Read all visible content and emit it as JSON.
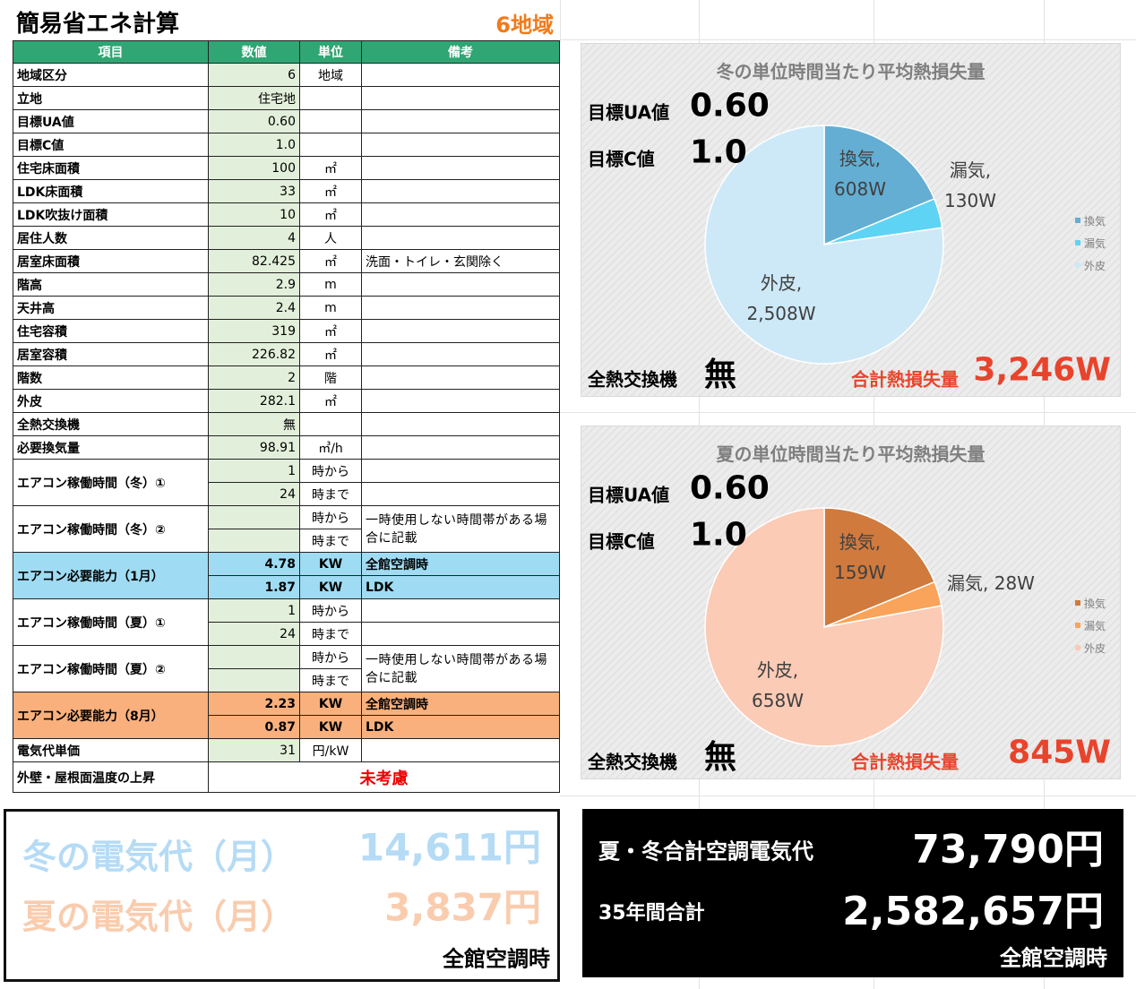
{
  "header": {
    "title": "簡易省エネ計算",
    "region": "6地域"
  },
  "table": {
    "columns": [
      "項目",
      "数値",
      "単位",
      "備考"
    ],
    "rows": [
      {
        "item": "地域区分",
        "value": "6",
        "unit": "地域"
      },
      {
        "item": "立地",
        "value": "住宅地"
      },
      {
        "item": "目標UA値",
        "value": "0.60"
      },
      {
        "item": "目標C値",
        "value": "1.0"
      },
      {
        "item": "住宅床面積",
        "value": "100",
        "unit": "㎡"
      },
      {
        "item": "LDK床面積",
        "value": "33",
        "unit": "㎡"
      },
      {
        "item": "LDK吹抜け面積",
        "value": "10",
        "unit": "㎡"
      },
      {
        "item": "居住人数",
        "value": "4",
        "unit": "人"
      },
      {
        "item": "居室床面積",
        "value": "82.425",
        "unit": "㎡",
        "note": "洗面・トイレ・玄関除く"
      },
      {
        "item": "階高",
        "value": "2.9",
        "unit": "m"
      },
      {
        "item": "天井高",
        "value": "2.4",
        "unit": "m"
      },
      {
        "item": "住宅容積",
        "value": "319",
        "unit": "㎡"
      },
      {
        "item": "居室容積",
        "value": "226.82",
        "unit": "㎡"
      },
      {
        "item": "階数",
        "value": "2",
        "unit": "階"
      },
      {
        "item": "外皮",
        "value": "282.1",
        "unit": "㎡"
      },
      {
        "item": "全熱交換機",
        "value": "無"
      },
      {
        "item": "必要換気量",
        "value": "98.91",
        "unit": "㎥/h"
      },
      {
        "item": "エアコン稼働時間（冬）①",
        "lines": [
          {
            "value": "1",
            "unit": "時から"
          },
          {
            "value": "24",
            "unit": "時まで"
          }
        ]
      },
      {
        "item": "エアコン稼働時間（冬）②",
        "lines": [
          {
            "unit": "時から"
          },
          {
            "unit": "時まで"
          }
        ],
        "note": "一時使用しない時間帯がある場合に記載"
      },
      {
        "item": "エアコン必要能力（1月）",
        "highlight": "#9fdcf3",
        "lines": [
          {
            "value": "4.78",
            "unit": "KW",
            "note": "全館空調時"
          },
          {
            "value": "1.87",
            "unit": "KW",
            "note": "LDK"
          }
        ]
      },
      {
        "item": "エアコン稼働時間（夏）①",
        "lines": [
          {
            "value": "1",
            "unit": "時から"
          },
          {
            "value": "24",
            "unit": "時まで"
          }
        ]
      },
      {
        "item": "エアコン稼働時間（夏）②",
        "lines": [
          {
            "unit": "時から"
          },
          {
            "unit": "時まで"
          }
        ],
        "note": "一時使用しない時間帯がある場合に記載"
      },
      {
        "item": "エアコン必要能力（8月）",
        "highlight": "#f9b07c",
        "lines": [
          {
            "value": "2.23",
            "unit": "KW",
            "note": "全館空調時"
          },
          {
            "value": "0.87",
            "unit": "KW",
            "note": "LDK"
          }
        ]
      },
      {
        "item": "電気代単価",
        "value": "31",
        "unit": "円/kW"
      },
      {
        "item": "外壁・屋根面温度の上昇",
        "remark": "未考慮"
      }
    ]
  },
  "chart_data": [
    {
      "type": "pie",
      "title": "冬の単位時間当たり平均熱損失量",
      "categories": [
        "換気",
        "漏気",
        "外皮"
      ],
      "values": [
        608,
        130,
        2508
      ],
      "value_labels": [
        "換気, 608W",
        "漏気, 130W",
        "外皮, 2,508W"
      ],
      "colors": [
        "#64aed3",
        "#5fd3f3",
        "#cde9f8"
      ],
      "legend": "right",
      "annotations": [
        {
          "label": "目標UA値",
          "text": "0.60"
        },
        {
          "label": "目標C値",
          "text": "1.0"
        },
        {
          "label": "全熱交換機",
          "text": "無"
        },
        {
          "label": "合計熱損失量",
          "text": "3,246W"
        }
      ]
    },
    {
      "type": "pie",
      "title": "夏の単位時間当たり平均熱損失量",
      "categories": [
        "換気",
        "漏気",
        "外皮"
      ],
      "values": [
        159,
        28,
        658
      ],
      "value_labels": [
        "換気, 159W",
        "漏気, 28W",
        "外皮, 658W"
      ],
      "colors": [
        "#d07a3e",
        "#f9a45a",
        "#fbcbb6"
      ],
      "legend": "right",
      "annotations": [
        {
          "label": "目標UA値",
          "text": "0.60"
        },
        {
          "label": "目標C値",
          "text": "1.0"
        },
        {
          "label": "全熱交換機",
          "text": "無"
        },
        {
          "label": "合計熱損失量",
          "text": "845W"
        }
      ]
    }
  ],
  "summary": {
    "monthly": {
      "rows": [
        {
          "label": "冬の電気代（月）",
          "amount": "14,611円"
        },
        {
          "label": "夏の電気代（月）",
          "amount": "3,837円"
        }
      ],
      "footer": "全館空調時"
    },
    "total": {
      "rows": [
        {
          "label": "夏・冬合計空調電気代",
          "amount": "73,790円"
        },
        {
          "label": "35年間合計",
          "amount": "2,582,657円"
        }
      ],
      "footer": "全館空調時"
    }
  }
}
